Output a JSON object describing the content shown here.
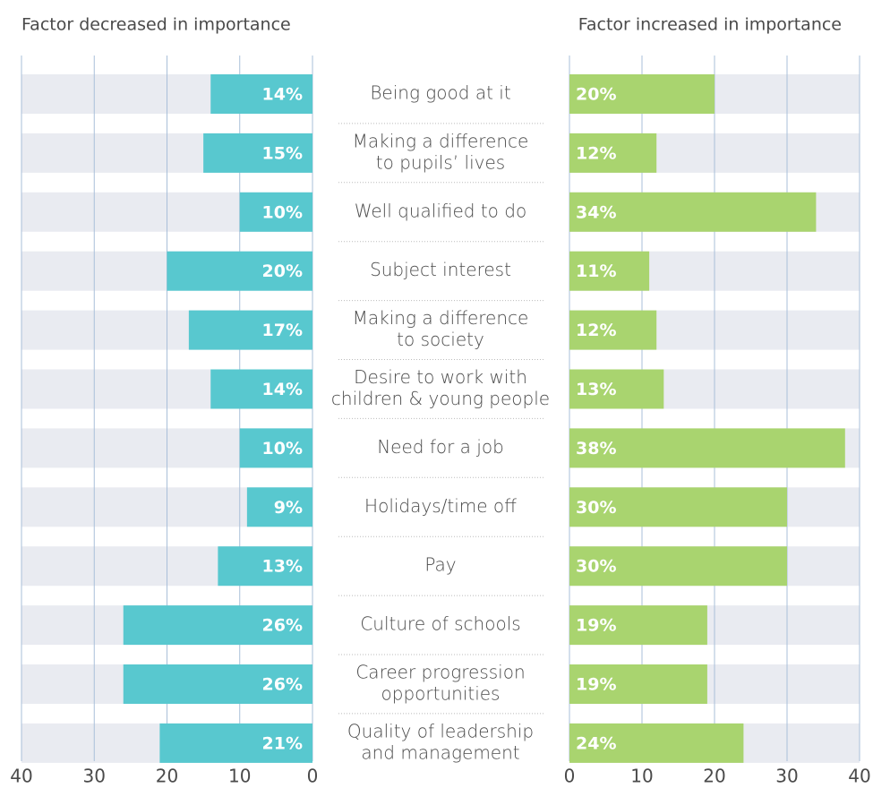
{
  "chart_data": {
    "type": "bar",
    "categories": [
      [
        "Being good at it"
      ],
      [
        "Making a difference",
        "to pupils’ lives"
      ],
      [
        "Well qualified to do"
      ],
      [
        "Subject interest"
      ],
      [
        "Making a difference",
        "to society"
      ],
      [
        "Desire to work with",
        "children & young people"
      ],
      [
        "Need for a job"
      ],
      [
        "Holidays/time off"
      ],
      [
        "Pay"
      ],
      [
        "Culture of schools"
      ],
      [
        "Career progression",
        "opportunities"
      ],
      [
        "Quality of leadership",
        "and management"
      ]
    ],
    "series": [
      {
        "name": "Factor decreased in importance",
        "color": "#58c8cf",
        "values": [
          14,
          15,
          10,
          20,
          17,
          14,
          10,
          9,
          13,
          26,
          26,
          21
        ],
        "value_labels": [
          "14%",
          "15%",
          "10%",
          "20%",
          "17%",
          "14%",
          "10%",
          "9%",
          "13%",
          "26%",
          "26%",
          "21%"
        ]
      },
      {
        "name": "Factor increased in importance",
        "color": "#a9d46f",
        "values": [
          20,
          12,
          34,
          11,
          12,
          13,
          38,
          30,
          30,
          19,
          19,
          24
        ],
        "value_labels": [
          "20%",
          "12%",
          "34%",
          "11%",
          "12%",
          "13%",
          "38%",
          "30%",
          "30%",
          "19%",
          "19%",
          "24%"
        ]
      }
    ],
    "xlim": [
      0,
      40
    ],
    "xticks": [
      0,
      10,
      20,
      30,
      40
    ],
    "grid": true
  }
}
